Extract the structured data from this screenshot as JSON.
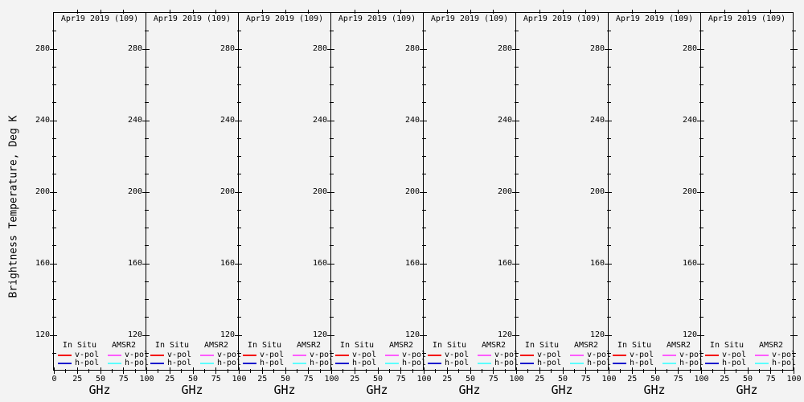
{
  "figure": {
    "y_axis_label": "Brightness Temperature, Deg K",
    "x_axis_label": "GHz",
    "y_range": [
      100,
      300
    ],
    "y_ticks_major": [
      280,
      240,
      200,
      160,
      120
    ],
    "y_tick_minor_step": 10,
    "x_range": [
      0,
      100
    ],
    "x_ticks_major": [
      0,
      25,
      50,
      75,
      100
    ],
    "x_ticks_minor": [
      12.5,
      37.5,
      62.5,
      87.5
    ],
    "text_color": "#000000",
    "background_color": "#f3f3f3"
  },
  "panels": [
    {
      "title": "Apr19 2019 (109)"
    },
    {
      "title": "Apr19 2019 (109)"
    },
    {
      "title": "Apr19 2019 (109)"
    },
    {
      "title": "Apr19 2019 (109)"
    },
    {
      "title": "Apr19 2019 (109)"
    },
    {
      "title": "Apr19 2019 (109)"
    },
    {
      "title": "Apr19 2019 (109)"
    },
    {
      "title": "Apr19 2019 (109)"
    }
  ],
  "legend": {
    "columns": [
      {
        "header": "In Situ",
        "entries": [
          {
            "label": "v-pol",
            "color": "#f40000"
          },
          {
            "label": "h-pol",
            "color": "#1414cd"
          }
        ]
      },
      {
        "header": "AMSR2",
        "entries": [
          {
            "label": "v-pol",
            "color": "#ff5cff"
          },
          {
            "label": "h-pol",
            "color": "#5cffff"
          }
        ]
      }
    ]
  },
  "chart_data": {
    "type": "line",
    "subplots": 8,
    "subplot_titles": [
      "Apr19 2019 (109)",
      "Apr19 2019 (109)",
      "Apr19 2019 (109)",
      "Apr19 2019 (109)",
      "Apr19 2019 (109)",
      "Apr19 2019 (109)",
      "Apr19 2019 (109)",
      "Apr19 2019 (109)"
    ],
    "title": "",
    "xlabel": "GHz",
    "ylabel": "Brightness Temperature, Deg K",
    "xlim": [
      0,
      100
    ],
    "ylim": [
      100,
      300
    ],
    "x_ticks": [
      0,
      25,
      50,
      75,
      100
    ],
    "y_ticks": [
      120,
      160,
      200,
      240,
      280
    ],
    "grid": false,
    "legend_position": "bottom-inside",
    "series": [
      {
        "name": "In Situ v-pol",
        "color": "#f40000",
        "x": [],
        "y": []
      },
      {
        "name": "In Situ h-pol",
        "color": "#1414cd",
        "x": [],
        "y": []
      },
      {
        "name": "AMSR2 v-pol",
        "color": "#ff5cff",
        "x": [],
        "y": []
      },
      {
        "name": "AMSR2 h-pol",
        "color": "#5cffff",
        "x": [],
        "y": []
      }
    ],
    "note": "All eight panels are empty: axes, titles and legends are drawn but no data curves are plotted."
  }
}
